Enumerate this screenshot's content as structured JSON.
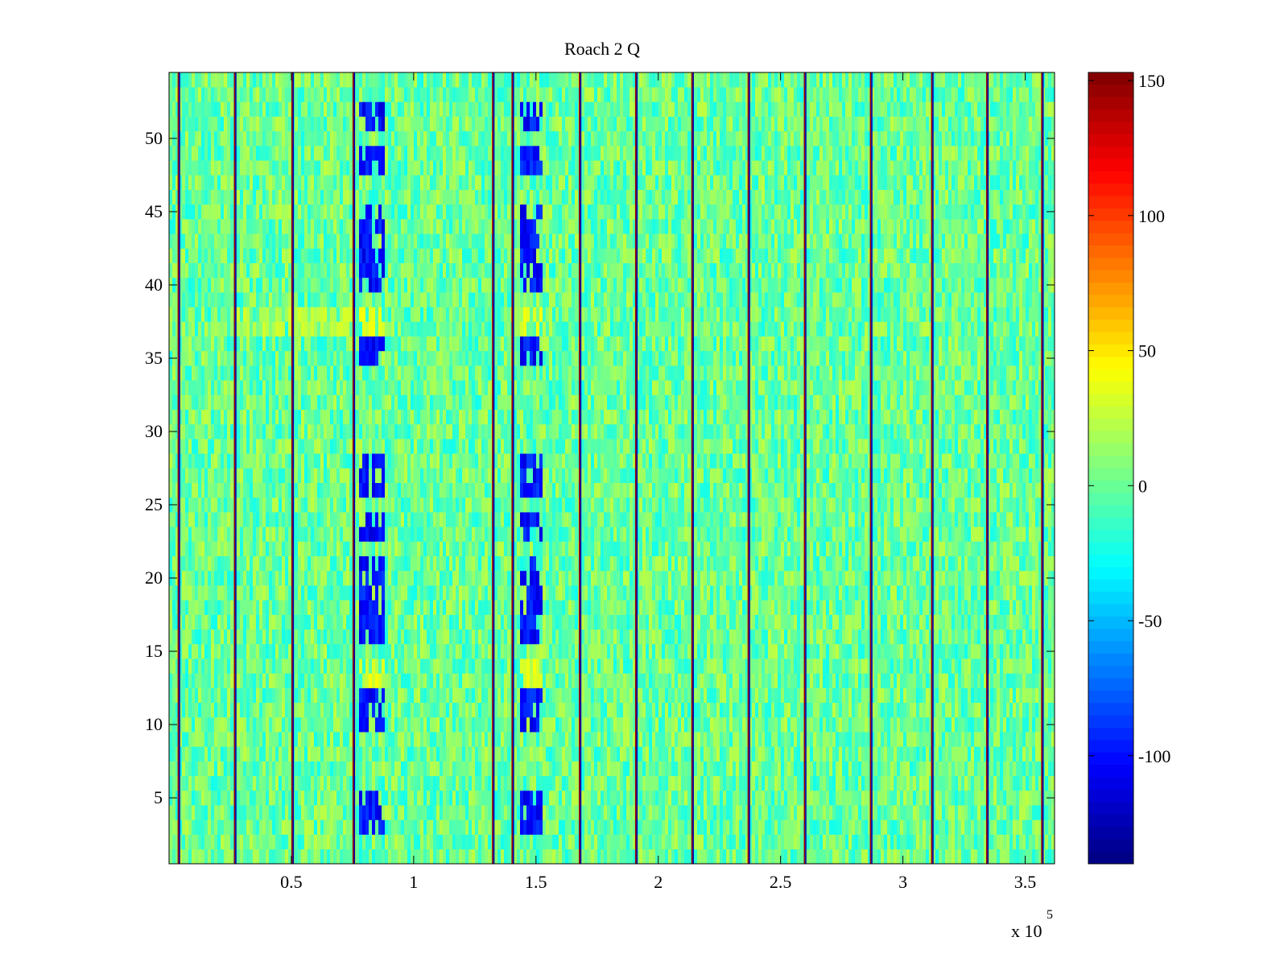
{
  "chart_data": {
    "type": "heatmap",
    "title": "Roach 2 Q",
    "xlabel": "",
    "ylabel": "",
    "x_exponent_label": "x 10",
    "x_exponent": "5",
    "xlim": [
      0,
      3.62
    ],
    "ylim": [
      0.5,
      54.5
    ],
    "x_ticks": [
      0.5,
      1,
      1.5,
      2,
      2.5,
      3,
      3.5
    ],
    "x_tick_labels": [
      "0.5",
      "1",
      "1.5",
      "2",
      "2.5",
      "3",
      "3.5"
    ],
    "y_ticks": [
      5,
      10,
      15,
      20,
      25,
      30,
      35,
      40,
      45,
      50
    ],
    "y_tick_labels": [
      "5",
      "10",
      "15",
      "20",
      "25",
      "30",
      "35",
      "40",
      "45",
      "50"
    ],
    "rows": 54,
    "background_value": 0,
    "noise_amplitude": 25,
    "colormap": "jet",
    "clim": [
      -140,
      153
    ],
    "colorbar": {
      "ticks": [
        150,
        100,
        50,
        0,
        -50,
        -100
      ],
      "tick_labels": [
        "150",
        "100",
        "50",
        "0",
        "-50",
        "-100"
      ]
    },
    "spike_columns_x": [
      0.04,
      0.27,
      0.505,
      0.755,
      1.325,
      1.405,
      1.68,
      1.91,
      2.14,
      2.37,
      2.6,
      2.87,
      3.12,
      3.345,
      3.57
    ],
    "low_bands": [
      {
        "x": [
          0.78,
          0.88
        ],
        "rows": [
          [
            51,
            52
          ],
          [
            48,
            49
          ],
          [
            44,
            45
          ],
          [
            42,
            43
          ],
          [
            40,
            41
          ],
          [
            35,
            36
          ],
          [
            26,
            28
          ],
          [
            23,
            24
          ],
          [
            19,
            21
          ],
          [
            16,
            18
          ],
          [
            10,
            12
          ],
          [
            3,
            5
          ]
        ],
        "value": -100
      },
      {
        "x": [
          1.43,
          1.53
        ],
        "rows": [
          [
            51,
            52
          ],
          [
            48,
            49
          ],
          [
            44,
            45
          ],
          [
            42,
            43
          ],
          [
            40,
            41
          ],
          [
            35,
            36
          ],
          [
            26,
            28
          ],
          [
            23,
            24
          ],
          [
            19,
            21
          ],
          [
            16,
            18
          ],
          [
            10,
            12
          ],
          [
            3,
            5
          ]
        ],
        "value": -100
      }
    ],
    "high_bands": [
      {
        "x": [
          0.78,
          0.88
        ],
        "rows": [
          [
            13,
            14
          ],
          [
            37,
            38
          ]
        ],
        "value": 35
      },
      {
        "x": [
          1.43,
          1.53
        ],
        "rows": [
          [
            13,
            14
          ],
          [
            37,
            38
          ]
        ],
        "value": 35
      },
      {
        "x": [
          0.28,
          0.8
        ],
        "rows": [
          [
            37,
            38
          ]
        ],
        "value": 25
      }
    ]
  }
}
